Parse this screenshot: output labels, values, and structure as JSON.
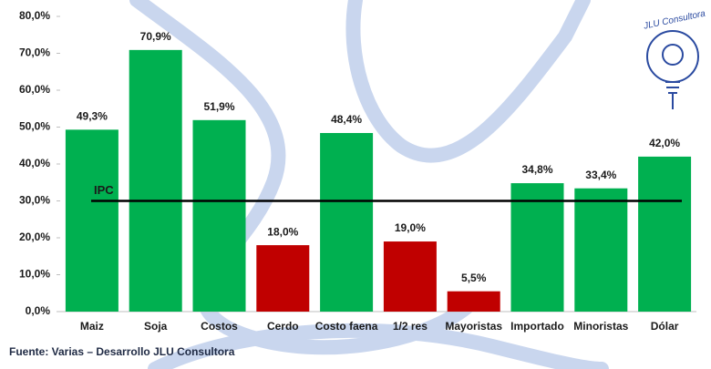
{
  "chart_data": {
    "type": "bar",
    "categories": [
      "Maiz",
      "Soja",
      "Costos",
      "Cerdo",
      "Costo faena",
      "1/2 res",
      "Mayoristas",
      "Importado",
      "Minoristas",
      "Dólar"
    ],
    "values": [
      49.3,
      70.9,
      51.9,
      18.0,
      48.4,
      19.0,
      5.5,
      34.8,
      33.4,
      42.0
    ],
    "value_labels": [
      "49,3%",
      "70,9%",
      "51,9%",
      "18,0%",
      "48,4%",
      "19,0%",
      "5,5%",
      "34,8%",
      "33,4%",
      "42,0%"
    ],
    "colors": [
      "#00b050",
      "#00b050",
      "#00b050",
      "#c00000",
      "#00b050",
      "#c00000",
      "#c00000",
      "#00b050",
      "#00b050",
      "#00b050"
    ],
    "ylim": [
      0,
      80
    ],
    "yticks": [
      {
        "value": 0,
        "label": "0,0%"
      },
      {
        "value": 10,
        "label": "10,0%"
      },
      {
        "value": 20,
        "label": "20,0%"
      },
      {
        "value": 30,
        "label": "30,0%"
      },
      {
        "value": 40,
        "label": "40,0%"
      },
      {
        "value": 50,
        "label": "50,0%"
      },
      {
        "value": 60,
        "label": "60,0%"
      },
      {
        "value": 70,
        "label": "70,0%"
      },
      {
        "value": 80,
        "label": "80,0%"
      }
    ],
    "grid": false,
    "reference_line": {
      "label": "IPC",
      "value": 30
    },
    "source": "Fuente: Varias – Desarrollo JLU Consultora",
    "logo": "JLU Consultora"
  }
}
